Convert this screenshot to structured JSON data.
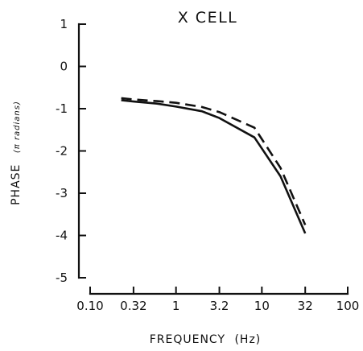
{
  "chart_data": {
    "type": "line",
    "title": "X CELL",
    "xlabel": "FREQUENCY",
    "xlabel_unit": "(Hz)",
    "ylabel": "PHASE",
    "ylabel_unit": "(π radians)",
    "x_scale": "log",
    "xlim": [
      0.1,
      100
    ],
    "ylim": [
      -5,
      1
    ],
    "x_ticks": [
      0.1,
      0.32,
      1,
      3.2,
      10,
      32,
      100
    ],
    "x_tick_labels": [
      "0.10",
      "0.32",
      "1",
      "3.2",
      "10",
      "32",
      "100"
    ],
    "y_ticks": [
      1,
      0,
      -1,
      -2,
      -3,
      -4,
      -5
    ],
    "y_tick_labels": [
      "1",
      "0",
      "-1",
      "-2",
      "-3",
      "-4",
      "-5"
    ],
    "grid": false,
    "series": [
      {
        "style": "solid",
        "x": [
          0.23,
          0.32,
          0.6,
          1,
          2,
          3.2,
          8.2,
          16.5,
          32
        ],
        "y": [
          -0.8,
          -0.83,
          -0.88,
          -0.95,
          -1.06,
          -1.22,
          -1.68,
          -2.6,
          -3.95
        ]
      },
      {
        "style": "dashed",
        "x": [
          0.23,
          0.32,
          0.6,
          1,
          2,
          3.2,
          8.2,
          16.5,
          32
        ],
        "y": [
          -0.75,
          -0.78,
          -0.82,
          -0.86,
          -0.96,
          -1.08,
          -1.45,
          -2.4,
          -3.75
        ]
      }
    ]
  }
}
